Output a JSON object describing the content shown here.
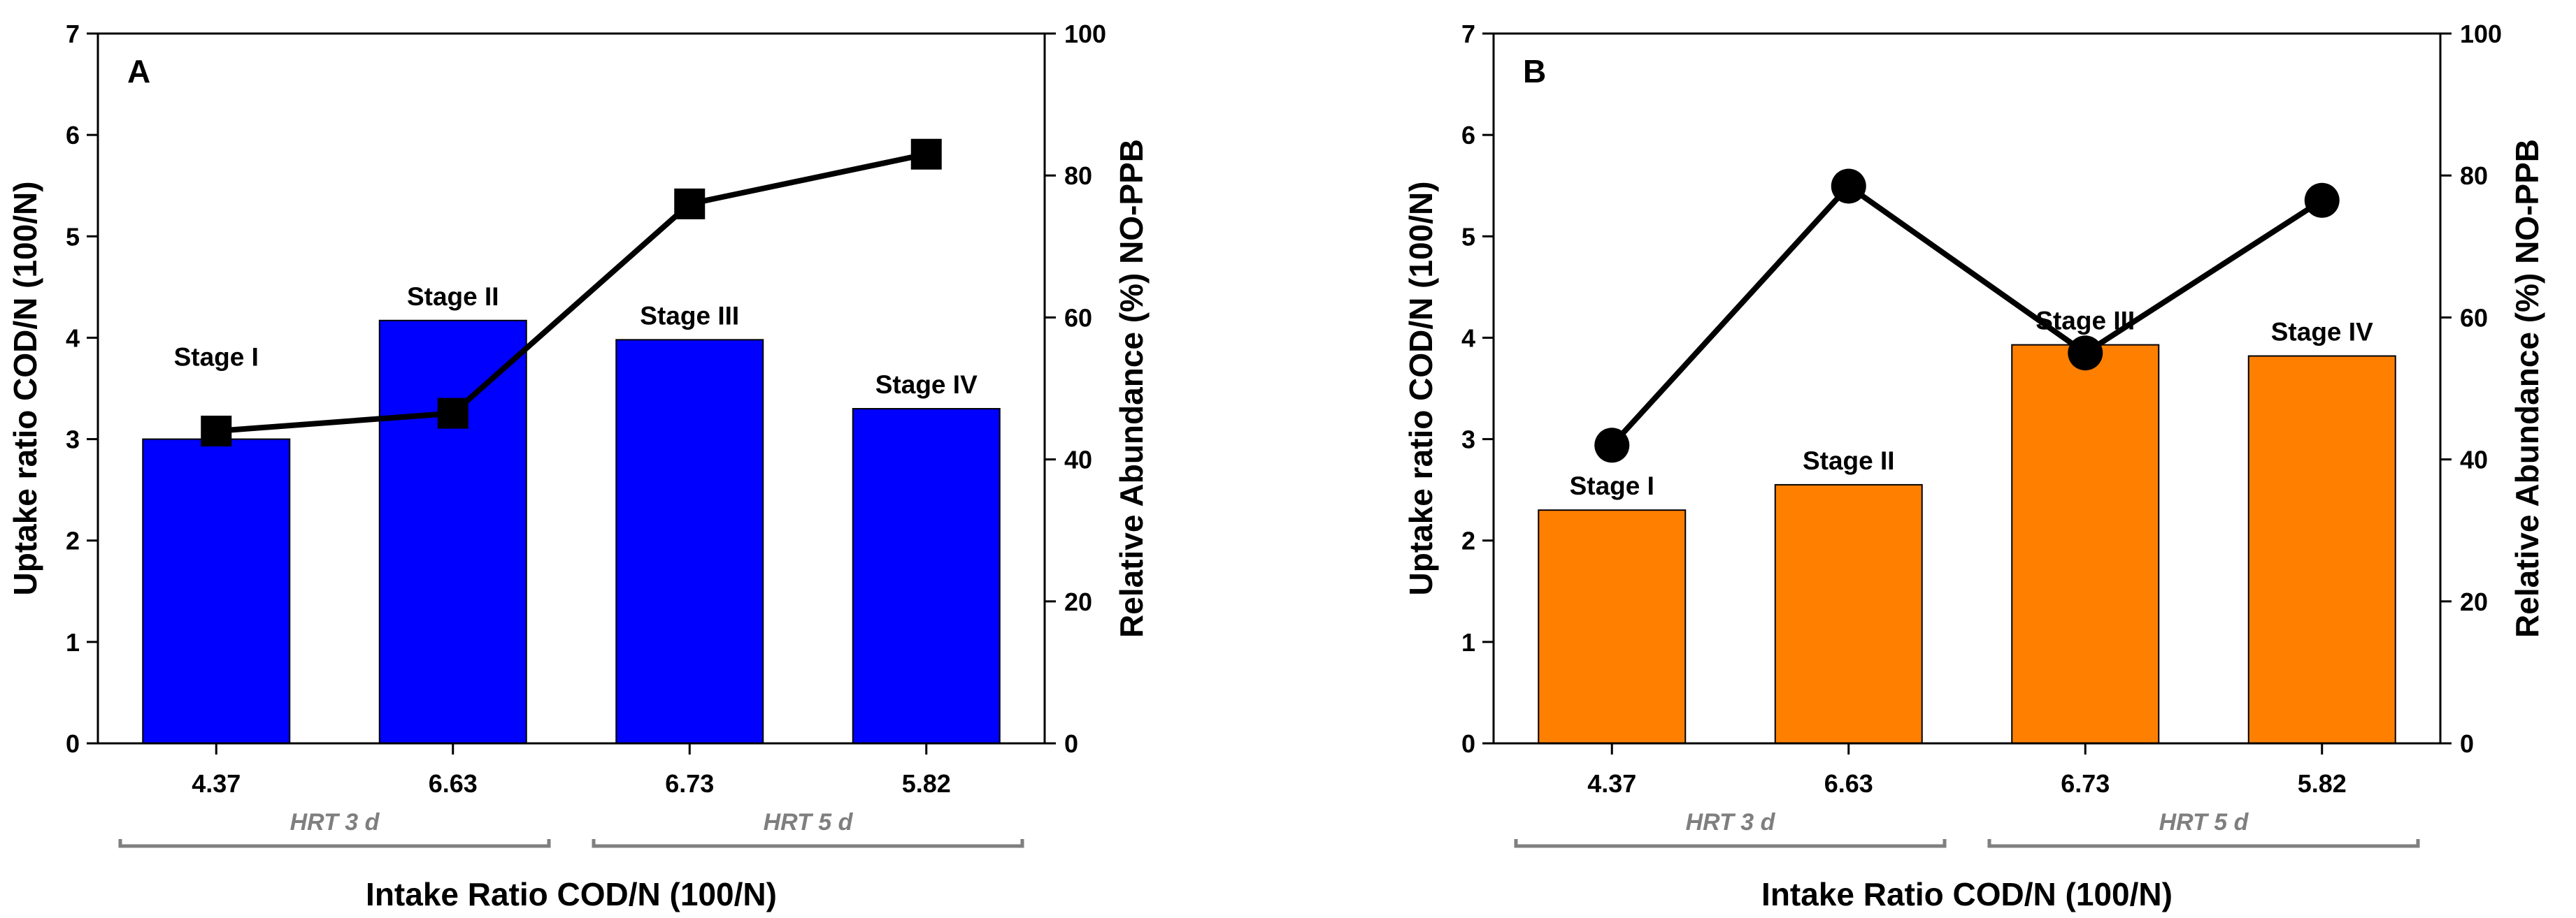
{
  "colors": {
    "panel_a_bar": "#0000ff",
    "panel_b_bar": "#ff8000",
    "line": "#000000",
    "hrt_group": "#7f7f7f"
  },
  "chart_data": [
    {
      "type": "bar",
      "panel_label": "A",
      "categories": [
        "4.37",
        "6.63",
        "6.73",
        "5.82"
      ],
      "stage_labels": [
        "Stage I",
        "Stage II",
        "Stage III",
        "Stage IV"
      ],
      "bar_color": "#0000ff",
      "series": [
        {
          "name": "Uptake ratio COD/N (100/N)",
          "axis": "left",
          "type": "bar",
          "values": [
            3.0,
            4.17,
            3.98,
            3.3
          ]
        },
        {
          "name": "Relative Abundance (%) NO-PPB",
          "axis": "right",
          "type": "line",
          "marker": "square",
          "values": [
            44,
            46.5,
            76,
            83
          ]
        }
      ],
      "ylabel_left": "Uptake ratio COD/N (100/N)",
      "ylabel_right": "Relative Abundance (%) NO-PPB",
      "xlabel": "Intake Ratio COD/N (100/N)",
      "ylim_left": [
        0,
        7
      ],
      "yticks_left": [
        "0",
        "1",
        "2",
        "3",
        "4",
        "5",
        "6",
        "7"
      ],
      "ylim_right": [
        0,
        100
      ],
      "yticks_right": [
        "0",
        "20",
        "40",
        "60",
        "80",
        "100"
      ],
      "groups": [
        {
          "label": "HRT 3 d",
          "span": [
            0,
            1
          ]
        },
        {
          "label": "HRT 5 d",
          "span": [
            2,
            3
          ]
        }
      ]
    },
    {
      "type": "bar",
      "panel_label": "B",
      "categories": [
        "4.37",
        "6.63",
        "6.73",
        "5.82"
      ],
      "stage_labels": [
        "Stage I",
        "Stage II",
        "Stage III",
        "Stage IV"
      ],
      "bar_color": "#ff8000",
      "series": [
        {
          "name": "Uptake ratio COD/N (100/N)",
          "axis": "left",
          "type": "bar",
          "values": [
            2.3,
            2.55,
            3.93,
            3.82
          ]
        },
        {
          "name": "Relative Abundance (%) NO-PPB",
          "axis": "right",
          "type": "line",
          "marker": "circle",
          "values": [
            42,
            78.5,
            55,
            76.5
          ]
        }
      ],
      "ylabel_left": "Uptake ratio COD/N (100/N)",
      "ylabel_right": "Relative Abundance (%) NO-PPB",
      "xlabel": "Intake Ratio COD/N (100/N)",
      "ylim_left": [
        0,
        7
      ],
      "yticks_left": [
        "0",
        "1",
        "2",
        "3",
        "4",
        "5",
        "6",
        "7"
      ],
      "ylim_right": [
        0,
        100
      ],
      "yticks_right": [
        "0",
        "20",
        "40",
        "60",
        "80",
        "100"
      ],
      "groups": [
        {
          "label": "HRT 3 d",
          "span": [
            0,
            1
          ]
        },
        {
          "label": "HRT 5 d",
          "span": [
            2,
            3
          ]
        }
      ]
    }
  ]
}
